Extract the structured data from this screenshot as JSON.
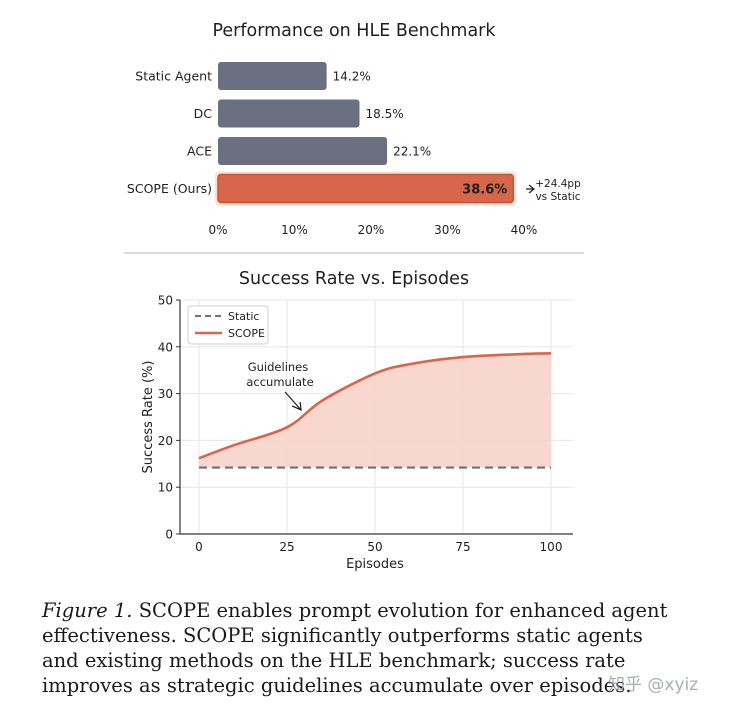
{
  "chart_data": [
    {
      "type": "bar",
      "orientation": "horizontal",
      "title": "Performance on HLE Benchmark",
      "categories": [
        "Static Agent",
        "DC",
        "ACE",
        "SCOPE (Ours)"
      ],
      "values": [
        14.2,
        18.5,
        22.1,
        38.6
      ],
      "value_labels": [
        "14.2%",
        "18.5%",
        "22.1%",
        "38.6%"
      ],
      "highlight_index": 3,
      "xlim": [
        0,
        40
      ],
      "xticks": [
        0,
        10,
        20,
        30,
        40
      ],
      "xtick_labels": [
        "0%",
        "10%",
        "20%",
        "30%",
        "40%"
      ],
      "xlabel": "",
      "ylabel": "",
      "colors": {
        "default": "#6b6f82",
        "highlight": "#d8664a"
      },
      "annotation": {
        "line1": "+24.4pp",
        "line2": "vs Static"
      }
    },
    {
      "type": "line",
      "title": "Success Rate vs. Episodes",
      "xlabel": "Episodes",
      "ylabel": "Success Rate (%)",
      "xlim": [
        0,
        100
      ],
      "ylim": [
        0,
        50
      ],
      "xticks": [
        0,
        25,
        50,
        75,
        100
      ],
      "xtick_labels": [
        "0",
        "25",
        "50",
        "75",
        "100"
      ],
      "yticks": [
        0,
        10,
        20,
        30,
        40,
        50
      ],
      "ytick_labels": [
        "0",
        "10",
        "20",
        "30",
        "40",
        "50"
      ],
      "grid": true,
      "legend_position": "top-left",
      "series": [
        {
          "name": "Static",
          "style": "dashed",
          "color": "#6b6f82",
          "x": [
            0,
            100
          ],
          "y": [
            14.2,
            14.2
          ]
        },
        {
          "name": "SCOPE",
          "style": "solid",
          "color": "#d8664a",
          "fill": "#f7d3c9",
          "x": [
            0,
            10,
            25,
            35,
            50,
            60,
            75,
            90,
            100
          ],
          "y": [
            16.2,
            19,
            22.8,
            28.5,
            34.3,
            36.3,
            37.8,
            38.4,
            38.6
          ]
        }
      ],
      "annotation": {
        "line1": "Guidelines",
        "line2": "accumulate",
        "x": 29,
        "y": 26.5
      }
    }
  ],
  "caption": {
    "label": "Figure 1.",
    "text": "SCOPE enables prompt evolution for enhanced agent effectiveness. SCOPE significantly outperforms static agents and existing methods on the HLE benchmark; success rate improves as strategic guidelines accumulate over episodes."
  },
  "watermark": "知乎 @xyiz"
}
